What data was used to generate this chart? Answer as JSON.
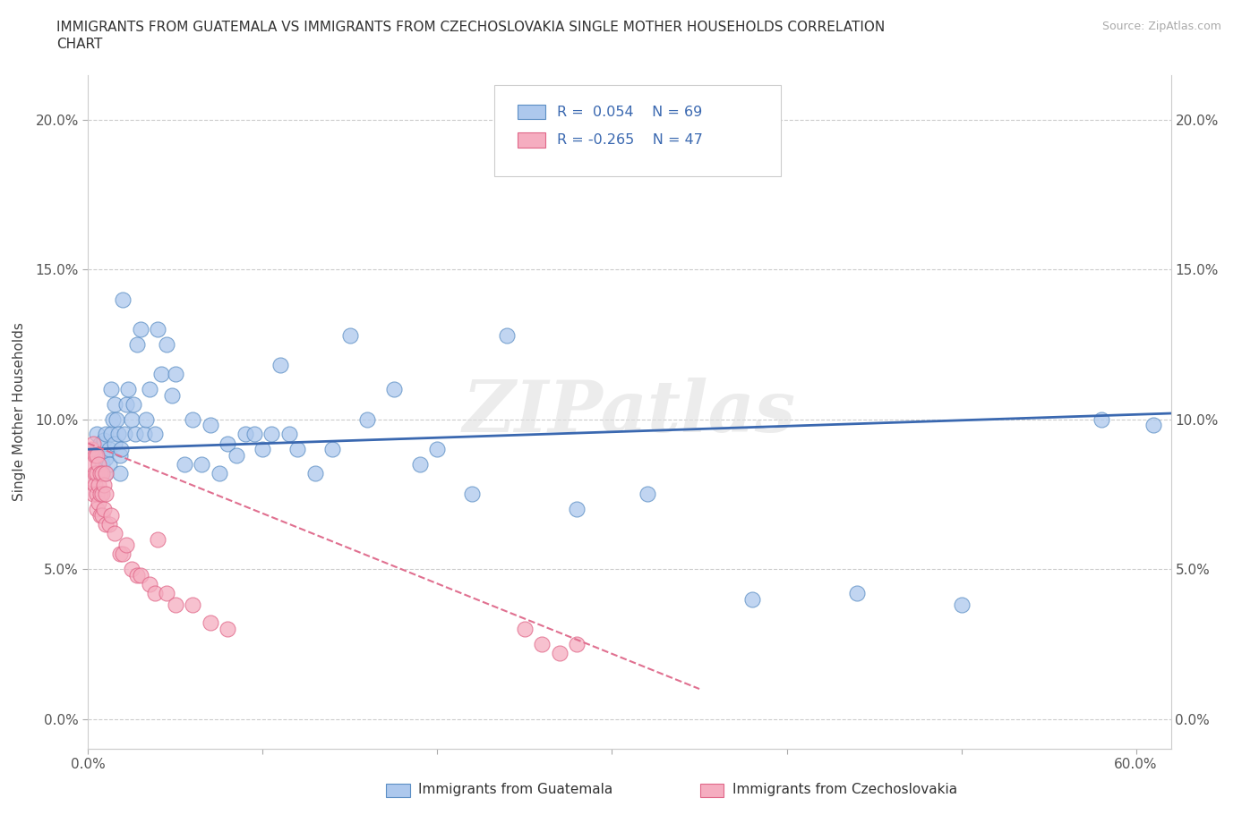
{
  "title_line1": "IMMIGRANTS FROM GUATEMALA VS IMMIGRANTS FROM CZECHOSLOVAKIA SINGLE MOTHER HOUSEHOLDS CORRELATION",
  "title_line2": "CHART",
  "source": "Source: ZipAtlas.com",
  "ylabel": "Single Mother Households",
  "xlim": [
    0,
    0.62
  ],
  "ylim": [
    -0.01,
    0.215
  ],
  "xticks": [
    0.0,
    0.1,
    0.2,
    0.3,
    0.4,
    0.5,
    0.6
  ],
  "xticklabels_show": [
    "0.0%",
    "",
    "",
    "",
    "",
    "",
    "60.0%"
  ],
  "yticks": [
    0.0,
    0.05,
    0.1,
    0.15,
    0.2
  ],
  "yticklabels": [
    "0.0%",
    "5.0%",
    "10.0%",
    "15.0%",
    "20.0%"
  ],
  "guatemala_color": "#adc8ed",
  "czechoslovakia_color": "#f5adc0",
  "guatemala_edge": "#5b8ec4",
  "czechoslovakia_edge": "#e06688",
  "line_guatemala_color": "#3a68b0",
  "line_czechoslovakia_color": "#e07090",
  "legend_r_guatemala": "R =  0.054",
  "legend_n_guatemala": "N = 69",
  "legend_r_czechoslovakia": "R = -0.265",
  "legend_n_czechoslovakia": "N = 47",
  "legend_label_guatemala": "Immigrants from Guatemala",
  "legend_label_czechoslovakia": "Immigrants from Czechoslovakia",
  "watermark": "ZIPatlas",
  "guatemala_line_x0": 0.0,
  "guatemala_line_y0": 0.09,
  "guatemala_line_x1": 0.62,
  "guatemala_line_y1": 0.102,
  "czechoslovakia_line_x0": 0.0,
  "czechoslovakia_line_y0": 0.092,
  "czechoslovakia_line_x1": 0.35,
  "czechoslovakia_line_y1": 0.01,
  "guatemala_x": [
    0.005,
    0.005,
    0.007,
    0.008,
    0.008,
    0.009,
    0.01,
    0.01,
    0.01,
    0.012,
    0.012,
    0.013,
    0.013,
    0.014,
    0.015,
    0.015,
    0.016,
    0.017,
    0.018,
    0.018,
    0.019,
    0.02,
    0.021,
    0.022,
    0.023,
    0.025,
    0.026,
    0.027,
    0.028,
    0.03,
    0.032,
    0.033,
    0.035,
    0.038,
    0.04,
    0.042,
    0.045,
    0.048,
    0.05,
    0.055,
    0.06,
    0.065,
    0.07,
    0.075,
    0.08,
    0.085,
    0.09,
    0.095,
    0.1,
    0.105,
    0.11,
    0.115,
    0.12,
    0.13,
    0.14,
    0.15,
    0.16,
    0.175,
    0.19,
    0.2,
    0.22,
    0.24,
    0.28,
    0.32,
    0.38,
    0.44,
    0.5,
    0.58,
    0.61
  ],
  "guatemala_y": [
    0.09,
    0.095,
    0.092,
    0.088,
    0.085,
    0.093,
    0.087,
    0.082,
    0.095,
    0.09,
    0.085,
    0.11,
    0.095,
    0.1,
    0.105,
    0.092,
    0.1,
    0.095,
    0.088,
    0.082,
    0.09,
    0.14,
    0.095,
    0.105,
    0.11,
    0.1,
    0.105,
    0.095,
    0.125,
    0.13,
    0.095,
    0.1,
    0.11,
    0.095,
    0.13,
    0.115,
    0.125,
    0.108,
    0.115,
    0.085,
    0.1,
    0.085,
    0.098,
    0.082,
    0.092,
    0.088,
    0.095,
    0.095,
    0.09,
    0.095,
    0.118,
    0.095,
    0.09,
    0.082,
    0.09,
    0.128,
    0.1,
    0.11,
    0.085,
    0.09,
    0.075,
    0.128,
    0.07,
    0.075,
    0.04,
    0.042,
    0.038,
    0.1,
    0.098
  ],
  "czechoslovakia_x": [
    0.002,
    0.002,
    0.003,
    0.003,
    0.003,
    0.004,
    0.004,
    0.004,
    0.005,
    0.005,
    0.005,
    0.005,
    0.006,
    0.006,
    0.006,
    0.007,
    0.007,
    0.007,
    0.008,
    0.008,
    0.008,
    0.009,
    0.009,
    0.01,
    0.01,
    0.01,
    0.012,
    0.013,
    0.015,
    0.018,
    0.02,
    0.022,
    0.025,
    0.028,
    0.03,
    0.035,
    0.038,
    0.04,
    0.045,
    0.05,
    0.06,
    0.07,
    0.08,
    0.25,
    0.26,
    0.27,
    0.28
  ],
  "czechoslovakia_y": [
    0.09,
    0.085,
    0.092,
    0.08,
    0.075,
    0.088,
    0.082,
    0.078,
    0.088,
    0.082,
    0.075,
    0.07,
    0.085,
    0.078,
    0.072,
    0.082,
    0.075,
    0.068,
    0.082,
    0.075,
    0.068,
    0.078,
    0.07,
    0.082,
    0.075,
    0.065,
    0.065,
    0.068,
    0.062,
    0.055,
    0.055,
    0.058,
    0.05,
    0.048,
    0.048,
    0.045,
    0.042,
    0.06,
    0.042,
    0.038,
    0.038,
    0.032,
    0.03,
    0.03,
    0.025,
    0.022,
    0.025
  ]
}
